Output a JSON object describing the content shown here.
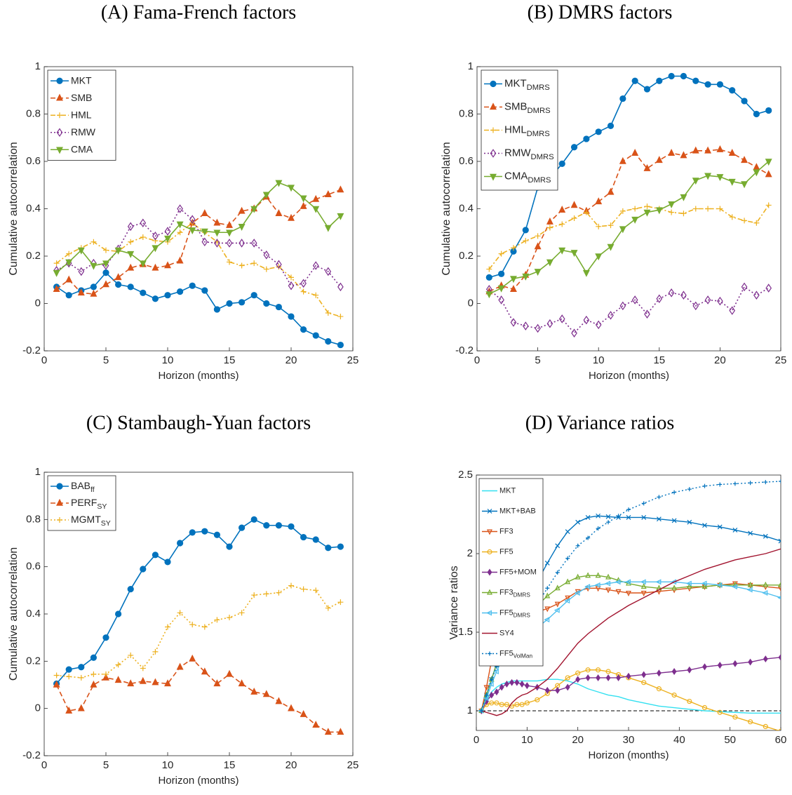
{
  "chart_data": [
    {
      "type": "line",
      "title": "(A) Fama-French factors",
      "xlabel": "Horizon (months)",
      "ylabel": "Cumulative autocorrelation",
      "xlim": [
        0,
        25
      ],
      "ylim": [
        -0.2,
        1
      ],
      "xticks": [
        0,
        5,
        10,
        15,
        20,
        25
      ],
      "yticks": [
        -0.2,
        0,
        0.2,
        0.4,
        0.6,
        0.8,
        1
      ],
      "legend": "upper left",
      "x": [
        1,
        2,
        3,
        4,
        5,
        6,
        7,
        8,
        9,
        10,
        11,
        12,
        13,
        14,
        15,
        16,
        17,
        18,
        19,
        20,
        21,
        22,
        23,
        24
      ],
      "series": [
        {
          "name": "MKT",
          "color": "#0072BD",
          "line_style": "-",
          "marker": "o",
          "marker_fill": true,
          "values": [
            0.07,
            0.035,
            0.055,
            0.07,
            0.13,
            0.08,
            0.07,
            0.045,
            0.02,
            0.035,
            0.05,
            0.075,
            0.055,
            -0.025,
            0,
            0.005,
            0.035,
            0,
            -0.015,
            -0.055,
            -0.11,
            -0.135,
            -0.16,
            -0.175
          ]
        },
        {
          "name": "SMB",
          "color": "#D95319",
          "line_style": "--",
          "marker": "^",
          "marker_fill": true,
          "values": [
            0.06,
            0.1,
            0.045,
            0.04,
            0.08,
            0.11,
            0.15,
            0.165,
            0.15,
            0.16,
            0.18,
            0.34,
            0.38,
            0.34,
            0.33,
            0.39,
            0.4,
            0.45,
            0.38,
            0.36,
            0.41,
            0.44,
            0.46,
            0.48
          ]
        },
        {
          "name": "HML",
          "color": "#EDB120",
          "line_style": "-.",
          "marker": "+",
          "marker_fill": false,
          "values": [
            0.17,
            0.21,
            0.235,
            0.26,
            0.225,
            0.22,
            0.26,
            0.28,
            0.265,
            0.26,
            0.3,
            0.34,
            0.3,
            0.26,
            0.175,
            0.16,
            0.17,
            0.145,
            0.155,
            0.11,
            0.05,
            0.035,
            -0.04,
            -0.055
          ]
        },
        {
          "name": "RMW",
          "color": "#7E2F8E",
          "line_style": ":",
          "marker": "d",
          "marker_fill": false,
          "values": [
            0.14,
            0.17,
            0.135,
            0.17,
            0.16,
            0.23,
            0.325,
            0.34,
            0.285,
            0.305,
            0.4,
            0.355,
            0.26,
            0.255,
            0.255,
            0.255,
            0.255,
            0.205,
            0.165,
            0.075,
            0.085,
            0.16,
            0.135,
            0.07
          ]
        },
        {
          "name": "CMA",
          "color": "#77AC30",
          "line_style": "-",
          "marker": "v",
          "marker_fill": true,
          "values": [
            0.13,
            0.175,
            0.225,
            0.16,
            0.17,
            0.225,
            0.21,
            0.17,
            0.235,
            0.275,
            0.335,
            0.31,
            0.305,
            0.3,
            0.3,
            0.325,
            0.4,
            0.46,
            0.51,
            0.49,
            0.445,
            0.4,
            0.32,
            0.37
          ]
        }
      ]
    },
    {
      "type": "line",
      "title": "(B) DMRS factors",
      "xlabel": "Horizon (months)",
      "ylabel": "Cumulative autocorrelation",
      "xlim": [
        0,
        25
      ],
      "ylim": [
        -0.2,
        1
      ],
      "xticks": [
        0,
        5,
        10,
        15,
        20,
        25
      ],
      "yticks": [
        -0.2,
        0,
        0.2,
        0.4,
        0.6,
        0.8,
        1
      ],
      "legend": "upper left",
      "x": [
        1,
        2,
        3,
        4,
        5,
        6,
        7,
        8,
        9,
        10,
        11,
        12,
        13,
        14,
        15,
        16,
        17,
        18,
        19,
        20,
        21,
        22,
        23,
        24
      ],
      "series": [
        {
          "name": "MKT",
          "subscript": "DMRS",
          "color": "#0072BD",
          "line_style": "-",
          "marker": "o",
          "marker_fill": true,
          "values": [
            0.11,
            0.125,
            0.22,
            0.31,
            0.49,
            0.53,
            0.59,
            0.66,
            0.695,
            0.725,
            0.75,
            0.865,
            0.94,
            0.905,
            0.94,
            0.96,
            0.96,
            0.94,
            0.925,
            0.925,
            0.9,
            0.855,
            0.8,
            0.815
          ]
        },
        {
          "name": "SMB",
          "subscript": "DMRS",
          "color": "#D95319",
          "line_style": "--",
          "marker": "^",
          "marker_fill": true,
          "values": [
            0.05,
            0.075,
            0.06,
            0.12,
            0.24,
            0.345,
            0.395,
            0.415,
            0.39,
            0.43,
            0.47,
            0.6,
            0.635,
            0.57,
            0.605,
            0.635,
            0.625,
            0.645,
            0.645,
            0.65,
            0.635,
            0.605,
            0.575,
            0.545
          ]
        },
        {
          "name": "HML",
          "subscript": "DMRS",
          "color": "#EDB120",
          "line_style": "-.",
          "marker": "+",
          "marker_fill": false,
          "values": [
            0.145,
            0.21,
            0.235,
            0.265,
            0.285,
            0.32,
            0.335,
            0.36,
            0.385,
            0.325,
            0.33,
            0.39,
            0.4,
            0.41,
            0.4,
            0.385,
            0.38,
            0.4,
            0.4,
            0.4,
            0.365,
            0.35,
            0.34,
            0.415
          ]
        },
        {
          "name": "RMW",
          "subscript": "DMRS",
          "color": "#7E2F8E",
          "line_style": ":",
          "marker": "d",
          "marker_fill": false,
          "values": [
            0.06,
            0.015,
            -0.08,
            -0.095,
            -0.105,
            -0.085,
            -0.065,
            -0.125,
            -0.07,
            -0.09,
            -0.05,
            -0.01,
            0.015,
            -0.045,
            0.02,
            0.045,
            0.035,
            -0.01,
            0.015,
            0.01,
            -0.03,
            0.07,
            0.035,
            0.065
          ]
        },
        {
          "name": "CMA",
          "subscript": "DMRS",
          "color": "#77AC30",
          "line_style": "-",
          "marker": "v",
          "marker_fill": true,
          "values": [
            0.04,
            0.065,
            0.105,
            0.115,
            0.135,
            0.175,
            0.225,
            0.215,
            0.13,
            0.2,
            0.24,
            0.315,
            0.355,
            0.385,
            0.395,
            0.42,
            0.45,
            0.52,
            0.54,
            0.535,
            0.515,
            0.505,
            0.555,
            0.6
          ]
        }
      ]
    },
    {
      "type": "line",
      "title": "(C) Stambaugh-Yuan factors",
      "xlabel": "Horizon (months)",
      "ylabel": "Cumulative autocorrelation",
      "xlim": [
        0,
        25
      ],
      "ylim": [
        -0.2,
        1
      ],
      "xticks": [
        0,
        5,
        10,
        15,
        20,
        25
      ],
      "yticks": [
        -0.2,
        0,
        0.2,
        0.4,
        0.6,
        0.8,
        1
      ],
      "legend": "upper left",
      "x": [
        1,
        2,
        3,
        4,
        5,
        6,
        7,
        8,
        9,
        10,
        11,
        12,
        13,
        14,
        15,
        16,
        17,
        18,
        19,
        20,
        21,
        22,
        23,
        24
      ],
      "series": [
        {
          "name": "BAB",
          "subscript": "ff",
          "color": "#0072BD",
          "line_style": "-",
          "marker": "o",
          "marker_fill": true,
          "values": [
            0.105,
            0.165,
            0.175,
            0.215,
            0.3,
            0.4,
            0.505,
            0.59,
            0.65,
            0.62,
            0.7,
            0.745,
            0.75,
            0.735,
            0.685,
            0.765,
            0.8,
            0.775,
            0.775,
            0.77,
            0.725,
            0.715,
            0.68,
            0.685
          ]
        },
        {
          "name": "PERF",
          "subscript": "SY",
          "color": "#D95319",
          "line_style": "--",
          "marker": "^",
          "marker_fill": true,
          "values": [
            0.1,
            -0.01,
            0,
            0.1,
            0.13,
            0.12,
            0.105,
            0.115,
            0.11,
            0.105,
            0.175,
            0.21,
            0.155,
            0.105,
            0.145,
            0.105,
            0.07,
            0.06,
            0.03,
            0,
            -0.025,
            -0.07,
            -0.1,
            -0.1
          ]
        },
        {
          "name": "MGMT",
          "subscript": "SY",
          "color": "#EDB120",
          "line_style": ":",
          "marker": "+",
          "marker_fill": false,
          "values": [
            0.14,
            0.135,
            0.13,
            0.145,
            0.145,
            0.185,
            0.225,
            0.17,
            0.24,
            0.345,
            0.405,
            0.355,
            0.345,
            0.375,
            0.385,
            0.405,
            0.48,
            0.485,
            0.49,
            0.52,
            0.505,
            0.5,
            0.425,
            0.45
          ]
        }
      ]
    },
    {
      "type": "line",
      "title": "(D) Variance ratios",
      "xlabel": "Horizon (months)",
      "ylabel": "Variance ratios",
      "xlim": [
        0,
        60
      ],
      "ylim": [
        0.875,
        2.5
      ],
      "xticks": [
        0,
        10,
        20,
        30,
        40,
        50,
        60
      ],
      "yticks": [
        1,
        1.5,
        2,
        2.5
      ],
      "legend": "upper left",
      "hline": 1,
      "x": [
        1,
        2,
        3,
        4,
        5,
        6,
        7,
        8,
        9,
        10,
        12,
        14,
        16,
        18,
        20,
        22,
        24,
        26,
        28,
        30,
        33,
        36,
        39,
        42,
        45,
        48,
        51,
        54,
        57,
        60
      ],
      "series": [
        {
          "name": "MKT",
          "color": "#33E0F0",
          "line_style": "-",
          "marker": "none",
          "marker_fill": false,
          "values": [
            1.0,
            1.07,
            1.12,
            1.15,
            1.17,
            1.18,
            1.19,
            1.19,
            1.19,
            1.19,
            1.19,
            1.2,
            1.2,
            1.19,
            1.17,
            1.14,
            1.12,
            1.1,
            1.09,
            1.07,
            1.05,
            1.03,
            1.02,
            1.01,
            1.0,
            0.995,
            0.99,
            0.985,
            0.985,
            0.985
          ]
        },
        {
          "name": "MKT+BAB",
          "color": "#0072BD",
          "line_style": "-",
          "marker": "x",
          "marker_fill": false,
          "values": [
            1.0,
            1.1,
            1.2,
            1.3,
            1.38,
            1.45,
            1.52,
            1.6,
            1.65,
            1.7,
            1.82,
            1.94,
            2.05,
            2.14,
            2.2,
            2.23,
            2.24,
            2.235,
            2.23,
            2.23,
            2.23,
            2.22,
            2.21,
            2.2,
            2.18,
            2.17,
            2.15,
            2.13,
            2.11,
            2.08
          ]
        },
        {
          "name": "FF3",
          "color": "#D95319",
          "line_style": "-",
          "marker": "v",
          "marker_fill": false,
          "values": [
            1.0,
            1.15,
            1.32,
            1.45,
            1.55,
            1.6,
            1.61,
            1.62,
            1.62,
            1.62,
            1.63,
            1.65,
            1.68,
            1.72,
            1.76,
            1.78,
            1.78,
            1.77,
            1.76,
            1.75,
            1.75,
            1.76,
            1.77,
            1.78,
            1.79,
            1.8,
            1.81,
            1.8,
            1.79,
            1.78
          ]
        },
        {
          "name": "FF5",
          "color": "#EDB120",
          "line_style": "-",
          "marker": "o",
          "marker_fill": false,
          "values": [
            1.0,
            1.04,
            1.05,
            1.05,
            1.04,
            1.04,
            1.03,
            1.04,
            1.04,
            1.05,
            1.07,
            1.11,
            1.16,
            1.21,
            1.24,
            1.26,
            1.26,
            1.25,
            1.23,
            1.21,
            1.18,
            1.14,
            1.1,
            1.06,
            1.02,
            0.99,
            0.96,
            0.93,
            0.9,
            0.87
          ]
        },
        {
          "name": "FF5+MOM",
          "color": "#7E2F8E",
          "line_style": "-",
          "marker": "d",
          "marker_fill": true,
          "values": [
            1.0,
            1.06,
            1.1,
            1.12,
            1.15,
            1.17,
            1.18,
            1.18,
            1.17,
            1.16,
            1.15,
            1.13,
            1.13,
            1.15,
            1.2,
            1.21,
            1.21,
            1.21,
            1.21,
            1.22,
            1.23,
            1.24,
            1.25,
            1.26,
            1.28,
            1.29,
            1.3,
            1.31,
            1.33,
            1.34
          ]
        },
        {
          "name": "FF3",
          "subscript": "DMRS",
          "color": "#77AC30",
          "line_style": "-",
          "marker": "^",
          "marker_fill": false,
          "values": [
            1.0,
            1.1,
            1.2,
            1.3,
            1.37,
            1.43,
            1.49,
            1.54,
            1.58,
            1.61,
            1.67,
            1.73,
            1.78,
            1.82,
            1.85,
            1.86,
            1.86,
            1.85,
            1.83,
            1.81,
            1.79,
            1.78,
            1.78,
            1.79,
            1.79,
            1.8,
            1.8,
            1.8,
            1.8,
            1.8
          ]
        },
        {
          "name": "FF5",
          "subscript": "DMRS",
          "color": "#4DBEEE",
          "line_style": "-",
          "marker": "<",
          "marker_fill": false,
          "values": [
            1.0,
            1.08,
            1.17,
            1.25,
            1.32,
            1.37,
            1.42,
            1.45,
            1.47,
            1.48,
            1.53,
            1.58,
            1.64,
            1.7,
            1.75,
            1.79,
            1.8,
            1.81,
            1.82,
            1.82,
            1.82,
            1.82,
            1.82,
            1.81,
            1.81,
            1.8,
            1.79,
            1.77,
            1.75,
            1.72
          ]
        },
        {
          "name": "SY4",
          "color": "#A2142F",
          "line_style": "-",
          "marker": "none",
          "marker_fill": false,
          "values": [
            1.0,
            0.99,
            0.98,
            0.97,
            0.98,
            1.0,
            1.05,
            1.08,
            1.1,
            1.11,
            1.15,
            1.2,
            1.27,
            1.35,
            1.43,
            1.49,
            1.54,
            1.59,
            1.63,
            1.67,
            1.72,
            1.77,
            1.82,
            1.86,
            1.9,
            1.93,
            1.96,
            1.98,
            2.0,
            2.03
          ]
        },
        {
          "name": "FF5",
          "subscript": "VolMan",
          "color": "#0072BD",
          "line_style": ":",
          "marker": "+",
          "marker_fill": false,
          "values": [
            1.0,
            1.1,
            1.2,
            1.28,
            1.35,
            1.42,
            1.48,
            1.52,
            1.57,
            1.6,
            1.68,
            1.78,
            1.88,
            1.97,
            2.05,
            2.1,
            2.16,
            2.2,
            2.24,
            2.28,
            2.32,
            2.36,
            2.39,
            2.41,
            2.43,
            2.44,
            2.445,
            2.45,
            2.455,
            2.46
          ]
        }
      ]
    }
  ]
}
